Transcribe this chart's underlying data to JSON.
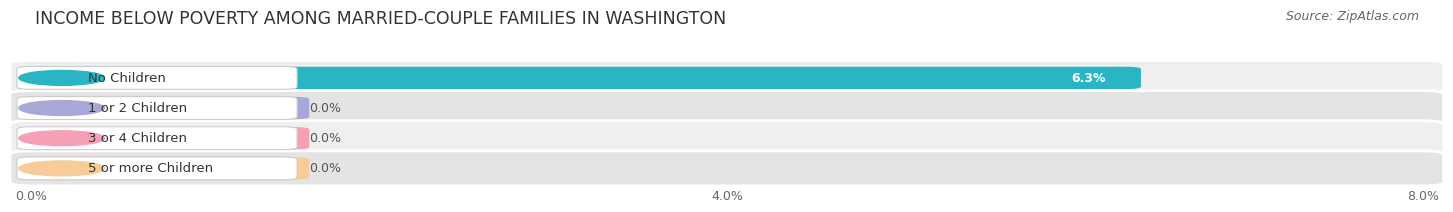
{
  "title": "INCOME BELOW POVERTY AMONG MARRIED-COUPLE FAMILIES IN WASHINGTON",
  "source": "Source: ZipAtlas.com",
  "categories": [
    "No Children",
    "1 or 2 Children",
    "3 or 4 Children",
    "5 or more Children"
  ],
  "values": [
    6.3,
    0.0,
    0.0,
    0.0
  ],
  "bar_colors": [
    "#29B5C3",
    "#A8A8D8",
    "#F5A0B5",
    "#F7CC98"
  ],
  "xlim": [
    0,
    8.0
  ],
  "xticks": [
    0.0,
    4.0,
    8.0
  ],
  "xtick_labels": [
    "0.0%",
    "4.0%",
    "8.0%"
  ],
  "bar_height": 0.62,
  "row_bg_light": "#efefef",
  "row_bg_dark": "#e4e4e4",
  "title_fontsize": 12.5,
  "source_fontsize": 9,
  "label_fontsize": 9.5,
  "value_fontsize": 9
}
